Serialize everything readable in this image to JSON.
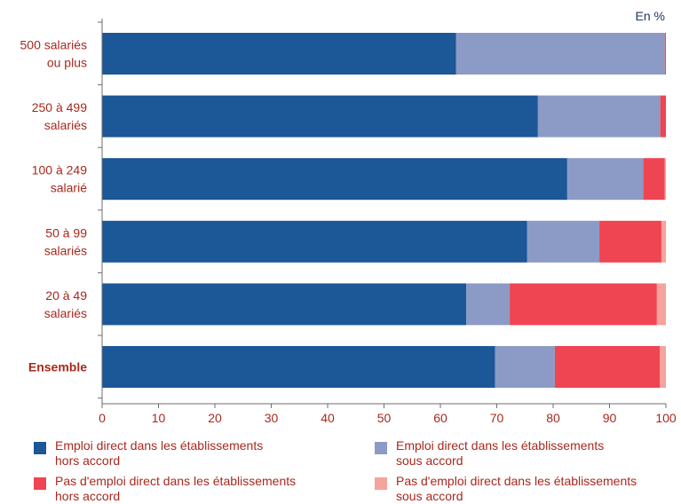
{
  "unit_label": "En %",
  "colors": {
    "axis": "#6d6d6d",
    "category_text": "#a8281e",
    "tick_text": "#a8281e"
  },
  "chart_data": {
    "type": "bar",
    "orientation": "horizontal",
    "stacked": true,
    "categories": [
      [
        "500 salariés",
        "ou plus"
      ],
      [
        "250 à 499",
        "salariés"
      ],
      [
        "100 à 249",
        "salarié"
      ],
      [
        "50 à 99",
        "salariés"
      ],
      [
        "20 à 49",
        "salariés"
      ],
      [
        "Ensemble"
      ]
    ],
    "bold_categories": [
      "Ensemble"
    ],
    "series": [
      {
        "name": "Emploi direct dans les établissements hors accord",
        "label_lines": [
          "Emploi direct dans les établissements",
          "hors accord"
        ],
        "color": "#1c5797",
        "values": [
          62.8,
          77.3,
          82.5,
          75.4,
          64.6,
          69.7
        ]
      },
      {
        "name": "Emploi direct dans les établissements sous accord",
        "label_lines": [
          "Emploi direct dans les établissements",
          "sous accord"
        ],
        "color": "#8b9bc6",
        "values": [
          37.0,
          21.7,
          13.5,
          12.8,
          7.7,
          10.6
        ]
      },
      {
        "name": "Pas d'emploi direct dans les établissements hors accord",
        "label_lines": [
          "Pas d'emploi direct dans les établissements",
          "hors accord"
        ],
        "color": "#ef4452",
        "values": [
          0.2,
          1.0,
          3.8,
          11.0,
          26.1,
          18.6
        ]
      },
      {
        "name": "Pas d'emploi direct dans les établissements sous accord",
        "label_lines": [
          "Pas d'emploi direct dans les établissements",
          "sous accord"
        ],
        "color": "#f5a39c",
        "values": [
          0.0,
          0.0,
          0.2,
          0.8,
          1.6,
          1.1
        ]
      }
    ],
    "xlim": [
      0,
      100
    ],
    "xticks": [
      0,
      10,
      20,
      30,
      40,
      50,
      60,
      70,
      80,
      90,
      100
    ],
    "xlabel": "",
    "ylabel": "",
    "grid": false,
    "legend_position": "bottom"
  }
}
